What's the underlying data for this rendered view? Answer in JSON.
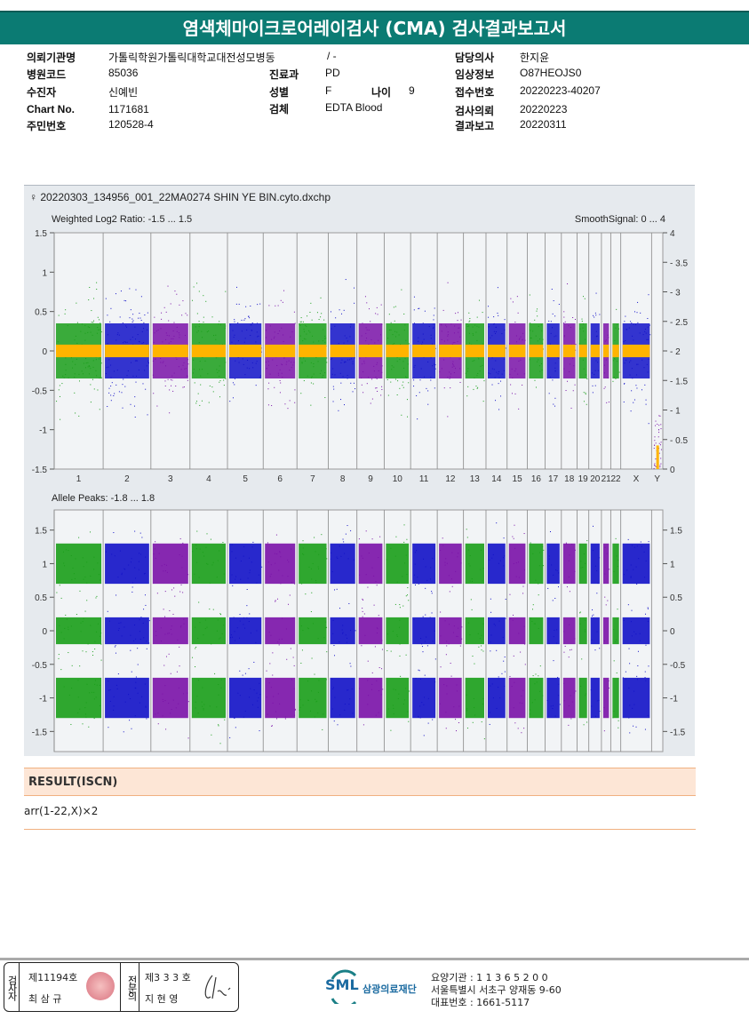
{
  "title": "염색체마이크로어레이검사 (CMA) 검사결과보고서",
  "info": {
    "institution_label": "의뢰기관명",
    "institution": "가톨릭학원가톨릭대학교대전성모병동",
    "ward": "/ -",
    "hospital_code_label": "병원코드",
    "hospital_code": "85036",
    "patient_label": "수진자",
    "patient": "신예빈",
    "chart_no_label": "Chart No.",
    "chart_no": "1171681",
    "resident_no_label": "주민번호",
    "resident_no": "120528-4",
    "dept_label": "진료과",
    "dept": "PD",
    "sex_label": "성별",
    "sex": "F",
    "age_label": "나이",
    "age": "9",
    "specimen_label": "검체",
    "specimen": "EDTA Blood",
    "doctor_label": "담당의사",
    "doctor": "한지윤",
    "clinical_label": "임상정보",
    "clinical": "O87HEOJS0",
    "receipt_label": "접수번호",
    "receipt": "20220223-40207",
    "request_label": "검사의뢰",
    "request": "20220223",
    "report_label": "결과보고",
    "report": "20220311"
  },
  "chart_data": {
    "type": "scatter",
    "file_title": "♀ 20220303_134956_001_22MA0274 SHIN YE BIN.cyto.dxchp",
    "chromosomes": [
      "1",
      "2",
      "3",
      "4",
      "5",
      "6",
      "7",
      "8",
      "9",
      "10",
      "11",
      "12",
      "13",
      "14",
      "15",
      "16",
      "17",
      "18",
      "19",
      "20",
      "21",
      "22",
      "X",
      "Y"
    ],
    "chromosome_colors": [
      "#1a9e1a",
      "#1212c8",
      "#7a12a8"
    ],
    "smooth_color": "#ffb400",
    "panels": [
      {
        "title": "Weighted Log2 Ratio: -1.5 ... 1.5",
        "right_title": "SmoothSignal: 0 ... 4",
        "ylim": [
          -1.5,
          1.5
        ],
        "yticks": [
          "1.5",
          "1",
          "0.5",
          "0",
          "-0.5",
          "-1",
          "-1.5"
        ],
        "y2lim": [
          0,
          4
        ],
        "y2ticks": [
          "4",
          "3.5",
          "3",
          "2.5",
          "2",
          "1.5",
          "1",
          "0.5",
          "0"
        ],
        "smooth_signal": 2
      },
      {
        "title": "Allele Peaks: -1.8 ... 1.8",
        "ylim": [
          -1.8,
          1.8
        ],
        "yticks": [
          "1.5",
          "1",
          "0.5",
          "0",
          "-0.5",
          "-1",
          "-1.5"
        ],
        "y2ticks": [
          "1.5",
          "1",
          "0.5",
          "0",
          "-0.5",
          "-1",
          "-1.5"
        ],
        "peaks": [
          -1,
          0,
          1
        ]
      }
    ]
  },
  "result": {
    "header": "RESULT(ISCN)",
    "value": "arr(1-22,X)×2"
  },
  "footer": {
    "examiner_label": "검사자",
    "examiner_no": "제11194호",
    "examiner_name": "최 삼 규",
    "specialist_label": "전문의",
    "specialist_no": "제3 3 3 호",
    "specialist_name": "지 현 영",
    "logo_text": "SML",
    "org_name": "삼광의료재단",
    "code_line": "요양기관 : 1 1 3 6 5 2 0 0",
    "address": "서울특별시 서초구 양재동 9-60",
    "phone": "대표번호 : 1661-5117"
  }
}
